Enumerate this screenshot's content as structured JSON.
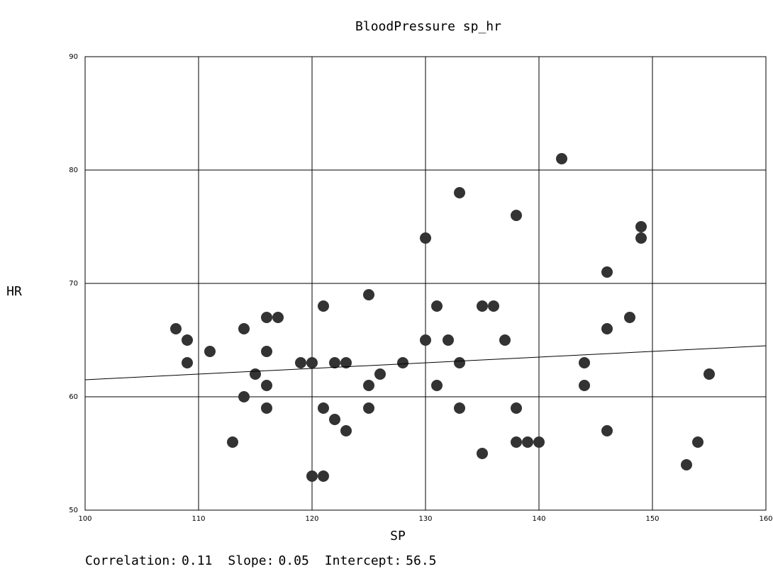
{
  "chart_data": {
    "type": "scatter",
    "title": "BloodPressure sp_hr",
    "x_label": "SP",
    "y_label": "HR",
    "x": [
      108,
      109,
      109,
      111,
      113,
      114,
      114,
      115,
      116,
      116,
      116,
      116,
      117,
      119,
      120,
      120,
      121,
      121,
      121,
      122,
      122,
      123,
      123,
      125,
      125,
      125,
      126,
      128,
      130,
      130,
      131,
      131,
      132,
      133,
      133,
      133,
      135,
      135,
      136,
      137,
      138,
      138,
      138,
      139,
      140,
      142,
      144,
      144,
      146,
      146,
      146,
      148,
      149,
      149,
      153,
      154,
      155
    ],
    "values": [
      66,
      65,
      63,
      64,
      56,
      66,
      60,
      62,
      67,
      64,
      61,
      59,
      67,
      63,
      63,
      53,
      68,
      59,
      53,
      63,
      58,
      63,
      57,
      69,
      61,
      59,
      62,
      63,
      74,
      65,
      68,
      61,
      65,
      78,
      63,
      59,
      68,
      55,
      68,
      65,
      76,
      59,
      56,
      56,
      56,
      81,
      63,
      61,
      71,
      66,
      57,
      67,
      75,
      74,
      54,
      56,
      62
    ],
    "color": "#333333",
    "xlim": [
      100,
      160
    ],
    "xticks": [
      100,
      110,
      120,
      130,
      140,
      150,
      160
    ],
    "ylim": [
      50,
      90
    ],
    "yticks": [
      50,
      60,
      70,
      80,
      90
    ],
    "grid": true,
    "stats": [
      {
        "label": "Correlation:",
        "value": 0.11
      },
      {
        "label": "Slope:",
        "value": 0.05
      },
      {
        "label": "Intercept:",
        "value": 56.5
      }
    ]
  }
}
